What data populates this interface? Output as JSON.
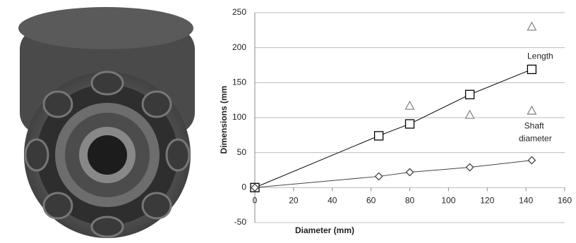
{
  "chart_data": {
    "type": "scatter",
    "ylabel": "Dimensions (mm",
    "xlabel": "Diameter (mm)",
    "xlim": [
      0,
      160
    ],
    "xticks": [
      0,
      20,
      40,
      60,
      80,
      100,
      120,
      140,
      160
    ],
    "ylim": [
      -50,
      250
    ],
    "yticks": [
      -50,
      0,
      50,
      100,
      150,
      200,
      250
    ],
    "grid": true,
    "series": [
      {
        "name": "Length",
        "color": "#000000",
        "marker": "square",
        "line": true,
        "x": [
          0,
          64,
          80,
          111,
          143
        ],
        "values": [
          0,
          74,
          91,
          133,
          169
        ]
      },
      {
        "name": "Shaft diameter",
        "color": "#444444",
        "marker": "diamond",
        "line": true,
        "x": [
          0,
          64,
          80,
          111,
          143
        ],
        "values": [
          0,
          16,
          22,
          29,
          39
        ]
      },
      {
        "color": "#888888",
        "marker": "triangle",
        "line": false,
        "x": [
          80,
          111,
          143,
          143
        ],
        "values": [
          117,
          104,
          230,
          110
        ]
      }
    ]
  }
}
